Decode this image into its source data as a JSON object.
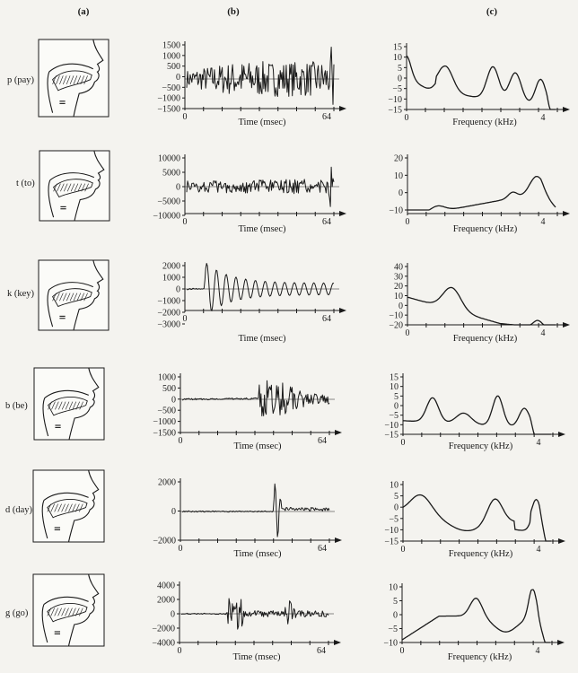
{
  "columns": [
    "(a)",
    "(b)",
    "(c)"
  ],
  "waveform_xlabel": "Time (msec)",
  "spectrum_xlabel": "Frequency (kHz)",
  "rows": [
    {
      "label": "p (pay)",
      "wave_yticks": [
        "1500",
        "1000",
        "500",
        "0",
        "−500",
        "−1000",
        "−1500"
      ],
      "wave_xticks": [
        "0",
        "64"
      ],
      "spec_yticks": [
        "15",
        "10",
        "5",
        "0",
        "−5",
        "−10",
        "−15"
      ],
      "spec_xticks": [
        "0",
        "4"
      ]
    },
    {
      "label": "t (to)",
      "wave_yticks": [
        "10000",
        "5000",
        "0",
        "−5000",
        "−10000"
      ],
      "wave_xticks": [
        "0",
        "64"
      ],
      "spec_yticks": [
        "20",
        "10",
        "0",
        "−10"
      ],
      "spec_xticks": [
        "0",
        "4"
      ]
    },
    {
      "label": "k (key)",
      "wave_yticks": [
        "2000",
        "1000",
        "0",
        "−1000",
        "−2000",
        "−3000"
      ],
      "wave_xticks": [
        "0",
        "64"
      ],
      "spec_yticks": [
        "40",
        "30",
        "20",
        "10",
        "0",
        "−10",
        "−20"
      ],
      "spec_xticks": [
        "0",
        "4"
      ]
    },
    {
      "label": "b (be)",
      "wave_yticks": [
        "1000",
        "500",
        "0",
        "−500",
        "−1000",
        "−1500"
      ],
      "wave_xticks": [
        "0",
        "64"
      ],
      "spec_yticks": [
        "15",
        "10",
        "5",
        "0",
        "−5",
        "−10",
        "−15"
      ],
      "spec_xticks": [
        "0",
        "4"
      ]
    },
    {
      "label": "d (day)",
      "wave_yticks": [
        "2000",
        "0",
        "−2000"
      ],
      "wave_xticks": [
        "0",
        "64"
      ],
      "spec_yticks": [
        "10",
        "5",
        "0",
        "−5",
        "−10",
        "−15"
      ],
      "spec_xticks": [
        "0",
        "4"
      ]
    },
    {
      "label": "g (go)",
      "wave_yticks": [
        "4000",
        "2000",
        "0",
        "−2000",
        "−4000"
      ],
      "wave_xticks": [
        "0",
        "64"
      ],
      "spec_yticks": [
        "10",
        "5",
        "0",
        "−5",
        "−10"
      ],
      "spec_xticks": [
        "0",
        "4"
      ]
    }
  ]
}
